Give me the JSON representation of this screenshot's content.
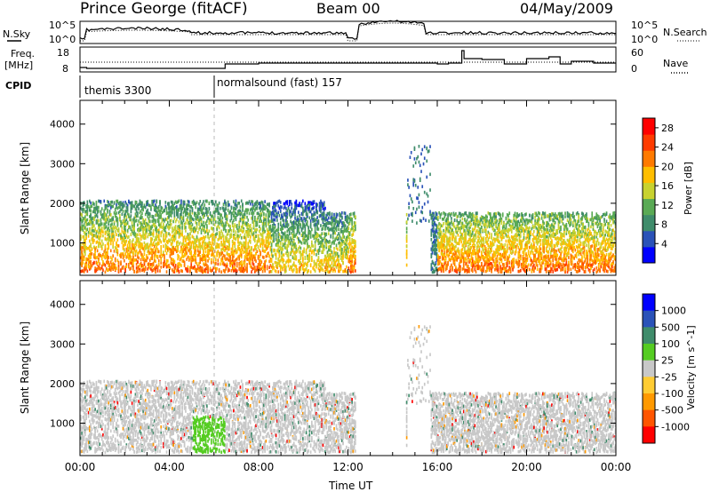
{
  "header": {
    "station": "Prince George (fitACF)",
    "beam": "Beam 00",
    "date": "04/May/2009"
  },
  "top_panel": {
    "left_label": "N.Sky",
    "left_ticks": [
      "10^5",
      "10^0"
    ],
    "right_label": "N.Search",
    "right_ticks": [
      "10^5",
      "10^0"
    ]
  },
  "freq_panel": {
    "left_label_line1": "Freq.",
    "left_label_line2": "[MHz]",
    "left_ticks": [
      "18",
      "8"
    ],
    "right_label": "Nave",
    "right_ticks": [
      "60",
      "0"
    ]
  },
  "cpid": {
    "label": "CPID",
    "programs": [
      {
        "name": "themis 3300",
        "start_hour": 0
      },
      {
        "name": "normalsound (fast) 157",
        "start_hour": 6
      }
    ]
  },
  "colors": {
    "power": [
      "#0000ff",
      "#2a52b8",
      "#3f8c6b",
      "#5aaa55",
      "#c8d230",
      "#ffbe00",
      "#ff7a00",
      "#ff3b00",
      "#ff0000"
    ],
    "velocity": [
      "#0000ff",
      "#2a52b8",
      "#3f8c6b",
      "#55cc22",
      "#c8c8c8",
      "#ffcc33",
      "#ff9900",
      "#ff5500",
      "#ff0000"
    ]
  },
  "chart_data": [
    {
      "type": "heatmap",
      "name": "power",
      "xlabel": "",
      "ylabel": "Slant Range [km]",
      "xlim": [
        0,
        24
      ],
      "ylim": [
        180,
        4600
      ],
      "y_ticks": [
        "1000",
        "2000",
        "3000",
        "4000"
      ],
      "colorbar_label": "Power [dB]",
      "colorbar_ticks": [
        "4",
        "8",
        "12",
        "16",
        "20",
        "24",
        "28"
      ],
      "colorbar_range": [
        0,
        30
      ]
    },
    {
      "type": "heatmap",
      "name": "velocity",
      "xlabel": "Time UT",
      "ylabel": "Slant Range [km]",
      "xlim": [
        0,
        24
      ],
      "ylim": [
        180,
        4600
      ],
      "x_ticks": [
        "00:00",
        "04:00",
        "08:00",
        "12:00",
        "16:00",
        "20:00",
        "00:00"
      ],
      "y_ticks": [
        "1000",
        "2000",
        "3000",
        "4000"
      ],
      "colorbar_label": "Velocity [m s^-1]",
      "colorbar_ticks": [
        "1000",
        "500",
        "100",
        "25",
        "-25",
        "-100",
        "-500",
        "-1000"
      ]
    }
  ]
}
